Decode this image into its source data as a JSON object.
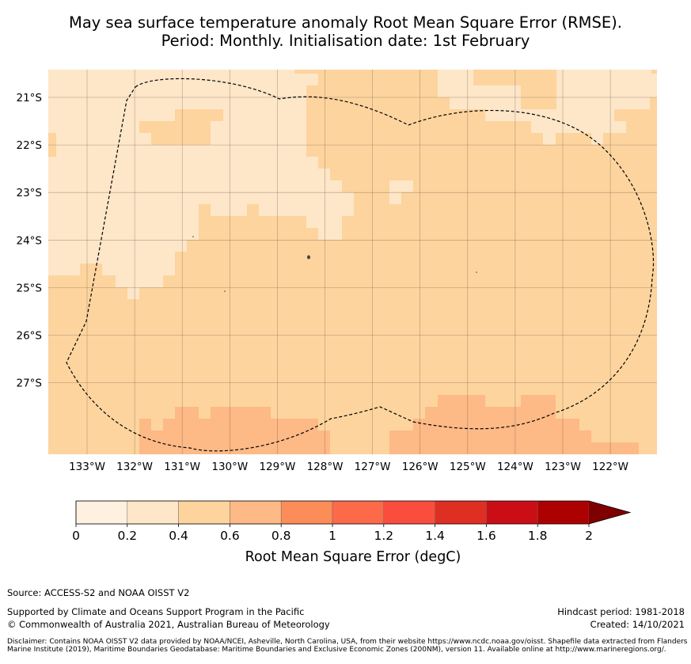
{
  "title_line1": "May sea surface temperature anomaly Root Mean Square Error (RMSE).",
  "title_line2": "Period: Monthly. Initialisation date: 1st February",
  "map": {
    "lon_labels": [
      "133°W",
      "132°W",
      "131°W",
      "130°W",
      "129°W",
      "128°W",
      "127°W",
      "126°W",
      "125°W",
      "124°W",
      "123°W",
      "122°W"
    ],
    "lat_labels": [
      "21°S",
      "22°S",
      "23°S",
      "24°S",
      "25°S",
      "26°S",
      "27°S"
    ],
    "boundary": "Exclusive Economic Zone (dashed outline)"
  },
  "colorbar": {
    "label": "Root Mean Square Error (degC)",
    "ticks": [
      "0",
      "0.2",
      "0.4",
      "0.6",
      "0.8",
      "1",
      "1.2",
      "1.4",
      "1.6",
      "1.8",
      "2"
    ],
    "colors": [
      "#fff1e0",
      "#fee6c8",
      "#fdd49e",
      "#fdb986",
      "#fc8d59",
      "#fc6a4a",
      "#fb4d3d",
      "#df2e22",
      "#cb0e16",
      "#ad0000",
      "#7f0000"
    ]
  },
  "source": "Source: ACCESS-S2 and NOAA OISST V2",
  "supported_by": "Supported by Climate and Oceans Support Program in the Pacific",
  "copyright": "© Commonwealth of Australia 2021, Australian Bureau of Meteorology",
  "hindcast": "Hindcast period: 1981-2018",
  "created": "Created: 14/10/2021",
  "disclaimer": "Disclaimer: Contains NOAA OISST V2 data provided by NOAA/NCEI, Asheville, North Carolina, USA, from their website https://www.ncdc.noaa.gov/oisst. Shapefile data extracted from Flanders Marine Institute (2019), Maritime Boundaries Geodatabase: Maritime Boundaries and Exclusive Economic Zones (200NM), version 11. Available online at http://www.marineregions.org/."
}
